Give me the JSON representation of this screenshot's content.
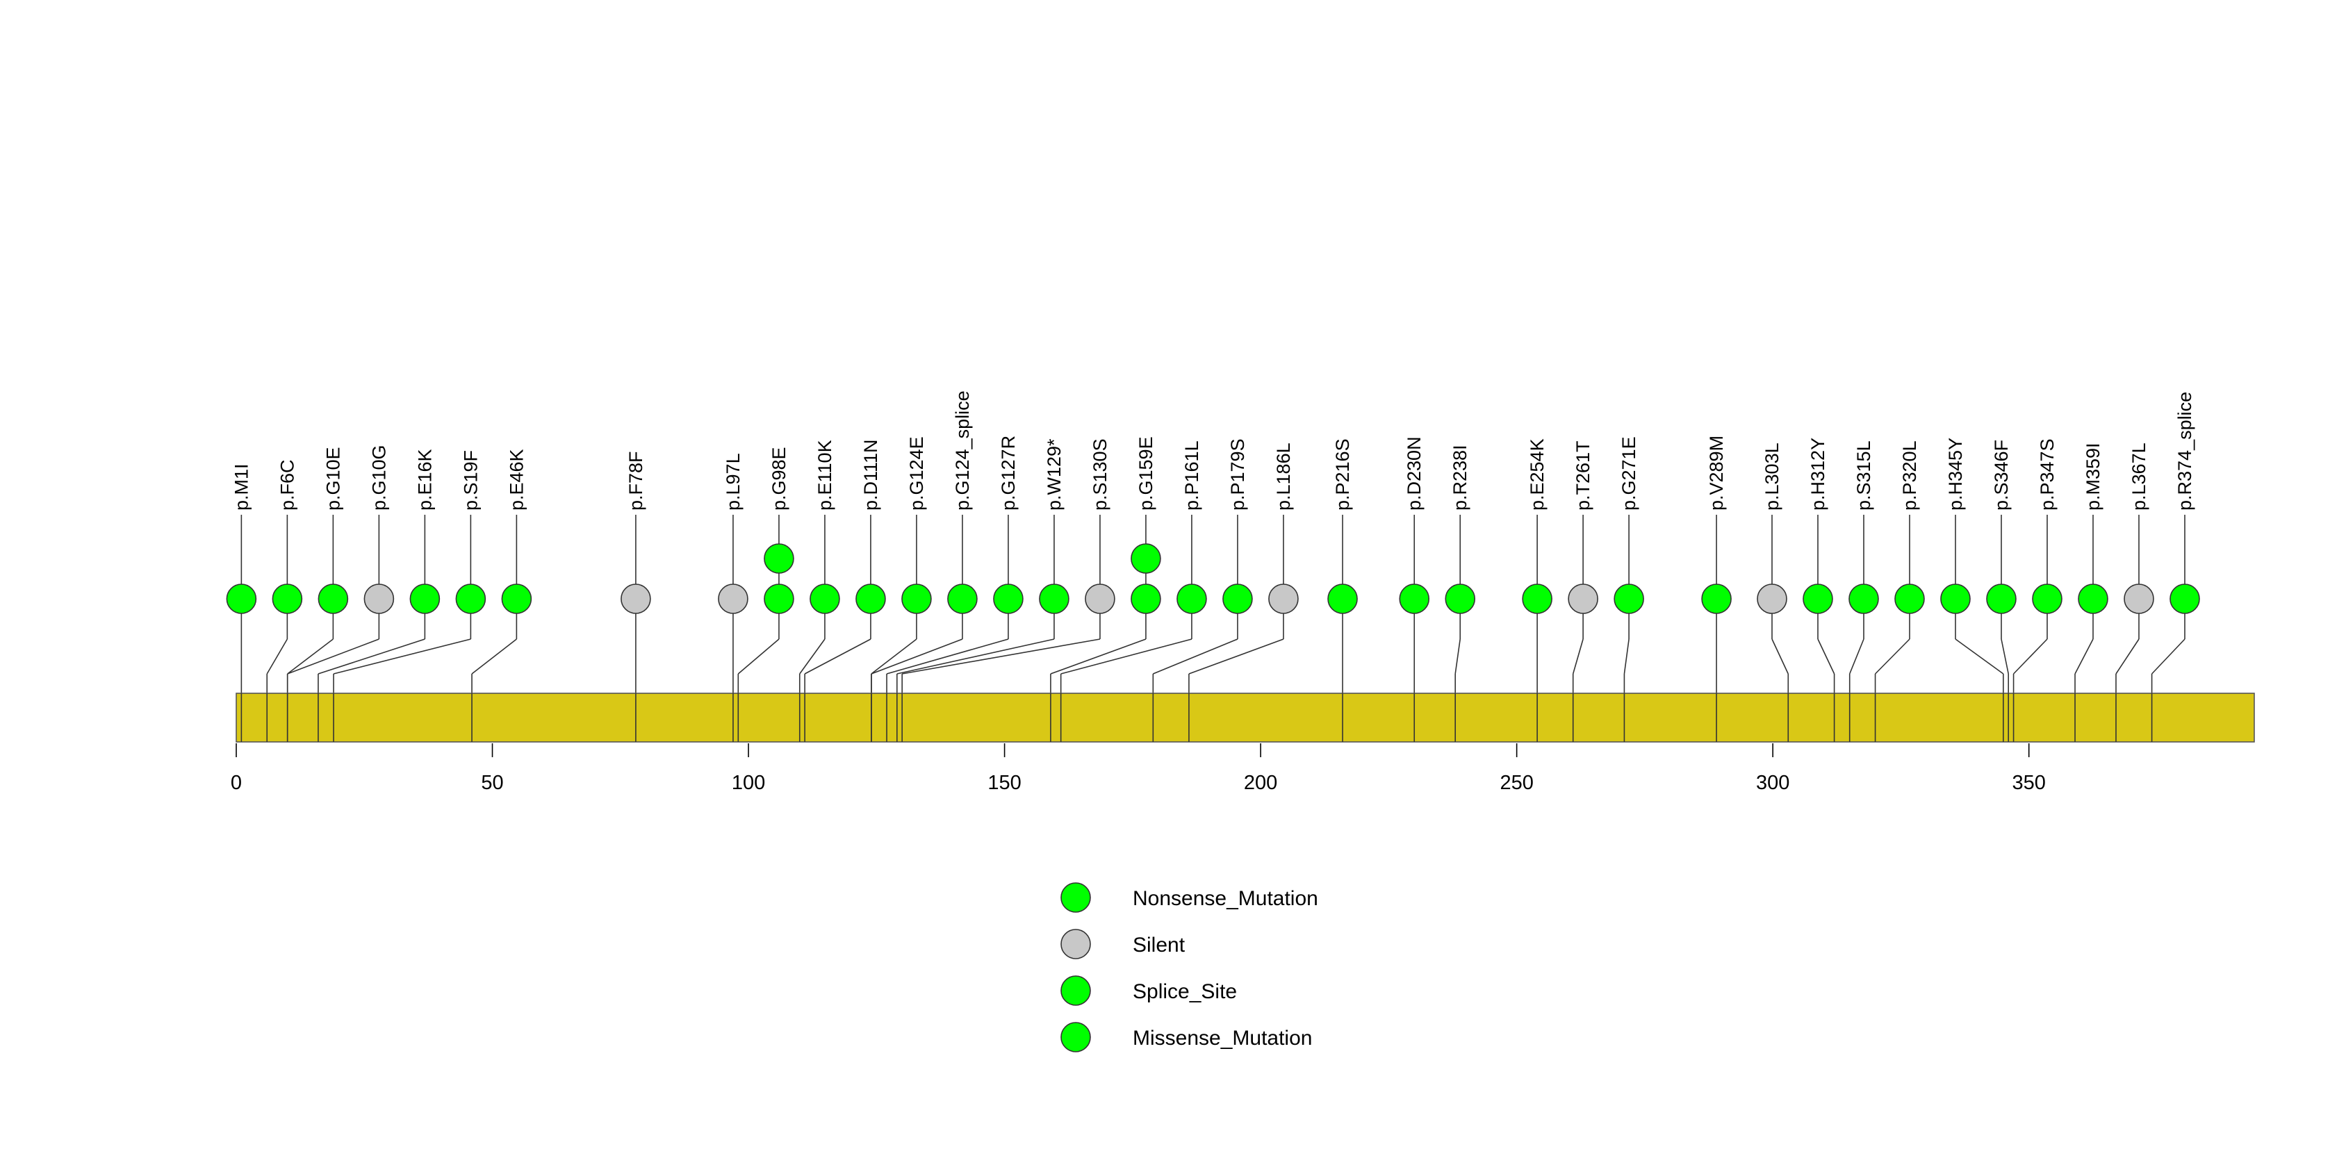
{
  "chart_data": {
    "type": "lollipop",
    "xlim": [
      0,
      394
    ],
    "x_ticks": [
      0,
      50,
      100,
      150,
      200,
      250,
      300,
      350
    ],
    "protein_bar_color": "#D9C816",
    "legend": [
      {
        "label": "Nonsense_Mutation",
        "color": "#00FF00"
      },
      {
        "label": "Silent",
        "color": "#C8C8C8"
      },
      {
        "label": "Splice_Site",
        "color": "#00FF00"
      },
      {
        "label": "Missense_Mutation",
        "color": "#00FF00"
      }
    ],
    "mutations": [
      {
        "label": "p.M1I",
        "pos": 1,
        "count": 1,
        "type": "Missense_Mutation"
      },
      {
        "label": "p.F6C",
        "pos": 6,
        "count": 1,
        "type": "Missense_Mutation"
      },
      {
        "label": "p.G10E",
        "pos": 10,
        "count": 1,
        "type": "Missense_Mutation"
      },
      {
        "label": "p.G10G",
        "pos": 10,
        "count": 1,
        "type": "Silent"
      },
      {
        "label": "p.E16K",
        "pos": 16,
        "count": 1,
        "type": "Missense_Mutation"
      },
      {
        "label": "p.S19F",
        "pos": 19,
        "count": 1,
        "type": "Missense_Mutation"
      },
      {
        "label": "p.E46K",
        "pos": 46,
        "count": 1,
        "type": "Missense_Mutation"
      },
      {
        "label": "p.F78F",
        "pos": 78,
        "count": 1,
        "type": "Silent"
      },
      {
        "label": "p.L97L",
        "pos": 97,
        "count": 1,
        "type": "Silent"
      },
      {
        "label": "p.G98E",
        "pos": 98,
        "count": 2,
        "type": "Missense_Mutation"
      },
      {
        "label": "p.E110K",
        "pos": 110,
        "count": 1,
        "type": "Missense_Mutation"
      },
      {
        "label": "p.D111N",
        "pos": 111,
        "count": 1,
        "type": "Missense_Mutation"
      },
      {
        "label": "p.G124E",
        "pos": 124,
        "count": 1,
        "type": "Missense_Mutation"
      },
      {
        "label": "p.G124_splice",
        "pos": 124,
        "count": 1,
        "type": "Splice_Site"
      },
      {
        "label": "p.G127R",
        "pos": 127,
        "count": 1,
        "type": "Missense_Mutation"
      },
      {
        "label": "p.W129*",
        "pos": 129,
        "count": 1,
        "type": "Nonsense_Mutation"
      },
      {
        "label": "p.S130S",
        "pos": 130,
        "count": 1,
        "type": "Silent"
      },
      {
        "label": "p.G159E",
        "pos": 159,
        "count": 2,
        "type": "Missense_Mutation"
      },
      {
        "label": "p.P161L",
        "pos": 161,
        "count": 1,
        "type": "Missense_Mutation"
      },
      {
        "label": "p.P179S",
        "pos": 179,
        "count": 1,
        "type": "Missense_Mutation"
      },
      {
        "label": "p.L186L",
        "pos": 186,
        "count": 1,
        "type": "Silent"
      },
      {
        "label": "p.P216S",
        "pos": 216,
        "count": 1,
        "type": "Missense_Mutation"
      },
      {
        "label": "p.D230N",
        "pos": 230,
        "count": 1,
        "type": "Missense_Mutation"
      },
      {
        "label": "p.R238I",
        "pos": 238,
        "count": 1,
        "type": "Missense_Mutation"
      },
      {
        "label": "p.E254K",
        "pos": 254,
        "count": 1,
        "type": "Missense_Mutation"
      },
      {
        "label": "p.T261T",
        "pos": 261,
        "count": 1,
        "type": "Silent"
      },
      {
        "label": "p.G271E",
        "pos": 271,
        "count": 1,
        "type": "Missense_Mutation"
      },
      {
        "label": "p.V289M",
        "pos": 289,
        "count": 1,
        "type": "Missense_Mutation"
      },
      {
        "label": "p.L303L",
        "pos": 303,
        "count": 1,
        "type": "Silent"
      },
      {
        "label": "p.H312Y",
        "pos": 312,
        "count": 1,
        "type": "Missense_Mutation"
      },
      {
        "label": "p.S315L",
        "pos": 315,
        "count": 1,
        "type": "Missense_Mutation"
      },
      {
        "label": "p.P320L",
        "pos": 320,
        "count": 1,
        "type": "Missense_Mutation"
      },
      {
        "label": "p.H345Y",
        "pos": 345,
        "count": 1,
        "type": "Missense_Mutation"
      },
      {
        "label": "p.S346F",
        "pos": 346,
        "count": 1,
        "type": "Missense_Mutation"
      },
      {
        "label": "p.P347S",
        "pos": 347,
        "count": 1,
        "type": "Missense_Mutation"
      },
      {
        "label": "p.M359I",
        "pos": 359,
        "count": 1,
        "type": "Missense_Mutation"
      },
      {
        "label": "p.L367L",
        "pos": 367,
        "count": 1,
        "type": "Silent"
      },
      {
        "label": "p.R374_splice",
        "pos": 374,
        "count": 1,
        "type": "Splice_Site"
      }
    ]
  }
}
